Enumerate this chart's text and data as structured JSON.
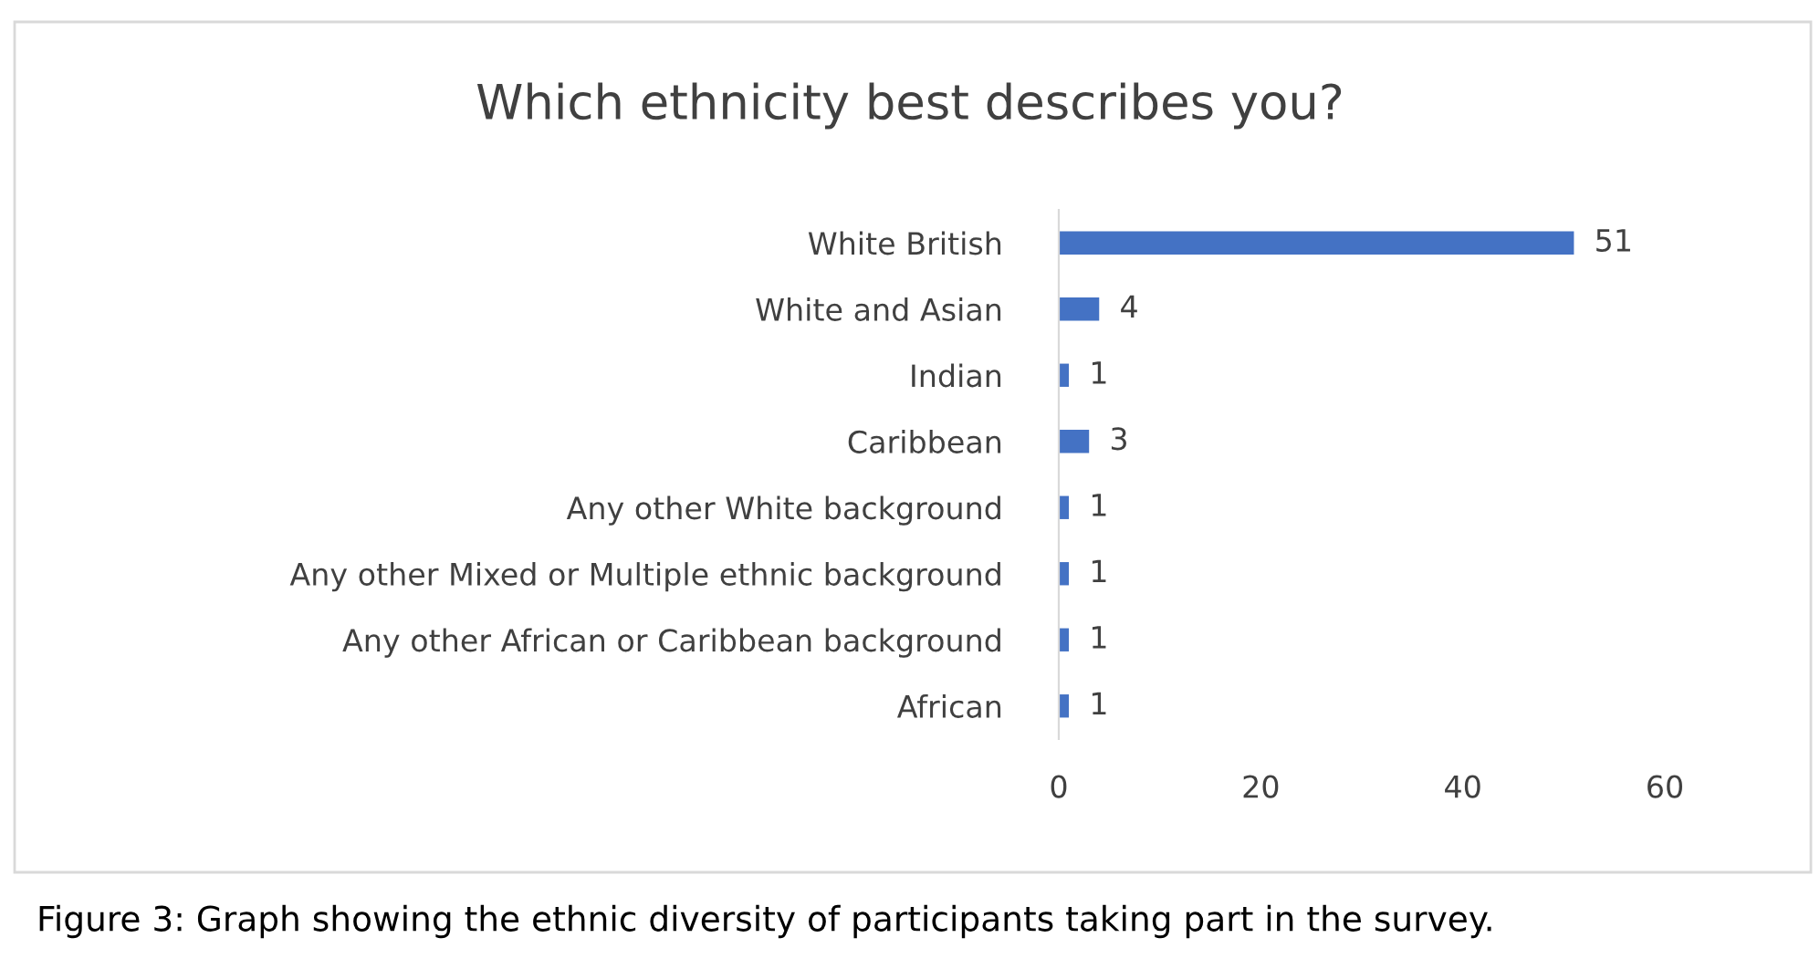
{
  "chart_data": {
    "type": "bar",
    "orientation": "horizontal",
    "title": "Which ethnicity best describes you?",
    "categories": [
      "White British",
      "White and Asian",
      "Indian",
      "Caribbean",
      "Any other White background",
      "Any other Mixed or Multiple ethnic background",
      "Any other African or Caribbean background",
      "African"
    ],
    "values": [
      51,
      4,
      1,
      3,
      1,
      1,
      1,
      1
    ],
    "color": "#4472c4",
    "xlim": [
      0,
      60
    ],
    "xticks": [
      0,
      20,
      40,
      60
    ],
    "grid": false,
    "data_labels": true,
    "annotations": [
      "Figure 3: Graph showing the ethnic diversity of participants taking part in the survey."
    ]
  }
}
